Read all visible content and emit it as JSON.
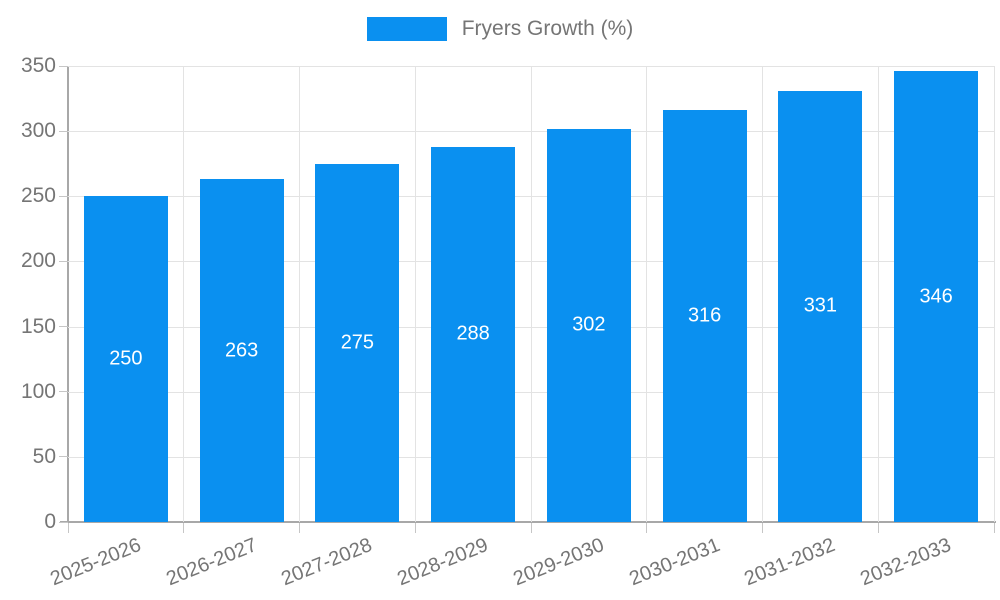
{
  "legend": {
    "label": "Fryers Growth (%)"
  },
  "colors": {
    "bar": "#0A90F0",
    "axis_text": "#757575",
    "grid": "#E3E3E3",
    "axis_line": "#A8A8A8",
    "tick": "#C6C6C6",
    "value_label": "#FFFFFF",
    "background": "#FFFFFF"
  },
  "chart_data": {
    "type": "bar",
    "title": "",
    "series": [
      {
        "name": "Fryers Growth (%)",
        "values": [
          250,
          263,
          275,
          288,
          302,
          316,
          331,
          346
        ]
      }
    ],
    "categories": [
      "2025-2026",
      "2026-2027",
      "2027-2028",
      "2028-2029",
      "2029-2030",
      "2030-2031",
      "2031-2032",
      "2032-2033"
    ],
    "xlabel": "",
    "ylabel": "",
    "ylim": [
      0,
      350
    ],
    "yticks": [
      0,
      50,
      100,
      150,
      200,
      250,
      300,
      350
    ],
    "grid": true,
    "legend_position": "top",
    "value_labels": "white, centered inside bars",
    "x_label_rotation_deg": -22
  }
}
